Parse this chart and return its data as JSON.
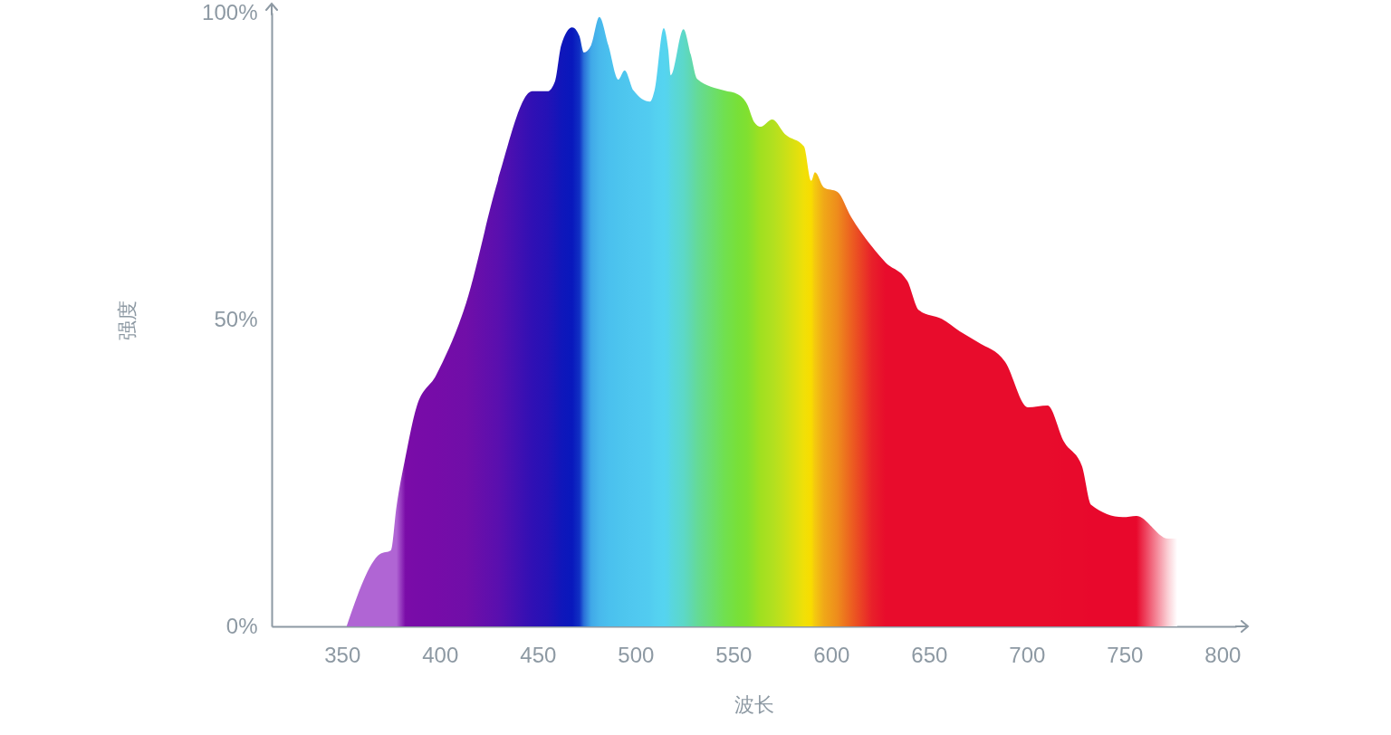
{
  "chart_data": {
    "type": "area",
    "xlabel": "波长",
    "ylabel": "强度",
    "x": [
      352.3,
      369.4,
      375,
      377.8,
      382.4,
      388,
      398,
      413.4,
      429.6,
      447.2,
      455,
      458.8,
      462,
      467.6,
      471.3,
      473.6,
      477.3,
      481.5,
      486.1,
      491.2,
      494.4,
      499,
      507.4,
      509.7,
      514.4,
      516.7,
      518,
      524.5,
      528.2,
      531.5,
      545.4,
      552.3,
      557,
      560.6,
      563.9,
      569.9,
      576.4,
      586.1,
      589.8,
      591.7,
      596.3,
      603.2,
      610.2,
      620.8,
      627.8,
      638.9,
      644.9,
      656.5,
      665.7,
      675,
      688.9,
      700.5,
      710.6,
      719,
      728.2,
      732.9,
      749.1,
      756,
      772.2,
      776.9
    ],
    "values": [
      0,
      11.8,
      12.4,
      19.5,
      27.6,
      35.7,
      40.9,
      52.7,
      72.6,
      87.2,
      87.2,
      88.8,
      94.7,
      97.6,
      96.2,
      93.5,
      94.7,
      99.3,
      94.7,
      89.1,
      90.6,
      87.3,
      85.5,
      87.3,
      97.5,
      94,
      89.8,
      97.3,
      93.2,
      89.2,
      87.3,
      86.7,
      85.1,
      82.2,
      81.4,
      82.6,
      80.2,
      78.2,
      72.6,
      74,
      71.5,
      70.8,
      66.7,
      61.9,
      59.3,
      56.3,
      51.5,
      50.1,
      48.1,
      46.3,
      43.1,
      35.7,
      36,
      30.1,
      26.1,
      19.8,
      17.8,
      18,
      14.3,
      14.3
    ],
    "colors": [
      "#b065d4",
      "#b065d4",
      "#b065d4",
      "#b065d4",
      "#7a0ca8",
      "#780ca8",
      "#760ca8",
      "#700ea8",
      "#5a0fae",
      "#3010b4",
      "#2412b6",
      "#1a14b8",
      "#1016ba",
      "#0818bc",
      "#1030c4",
      "#2a70d8",
      "#40a8e8",
      "#48b8ec",
      "#4ac0ee",
      "#4cc4ee",
      "#4ec6ee",
      "#50c8f0",
      "#52ccf0",
      "#54d0f0",
      "#55d4f0",
      "#56d4ea",
      "#58d6e0",
      "#5cd8c8",
      "#60d8b0",
      "#64da98",
      "#70e050",
      "#78e038",
      "#80e030",
      "#90e028",
      "#a0e020",
      "#b0e020",
      "#c8e018",
      "#f0e008",
      "#f8dc00",
      "#f4c810",
      "#f0a818",
      "#ee8c1c",
      "#ec6020",
      "#e8202a",
      "#e80c2c",
      "#e80c2c",
      "#e80c2c",
      "#e80c2c",
      "#e80c2c",
      "#e80c2c",
      "#e80c2c",
      "#e80c2c",
      "#e80c2c",
      "#e80a2c",
      "#e80a2c",
      "#e8082c",
      "#e8082c",
      "#e8082c",
      "#fbd0d6",
      "#ffffff"
    ],
    "xlim": [
      314,
      807
    ],
    "xticks": [
      350,
      400,
      450,
      500,
      550,
      600,
      650,
      700,
      750,
      800
    ],
    "ylim": [
      0,
      100
    ],
    "yticks": [
      {
        "value": 0,
        "label": "0%"
      },
      {
        "value": 50,
        "label": "50%"
      },
      {
        "value": 100,
        "label": "100%"
      }
    ]
  }
}
